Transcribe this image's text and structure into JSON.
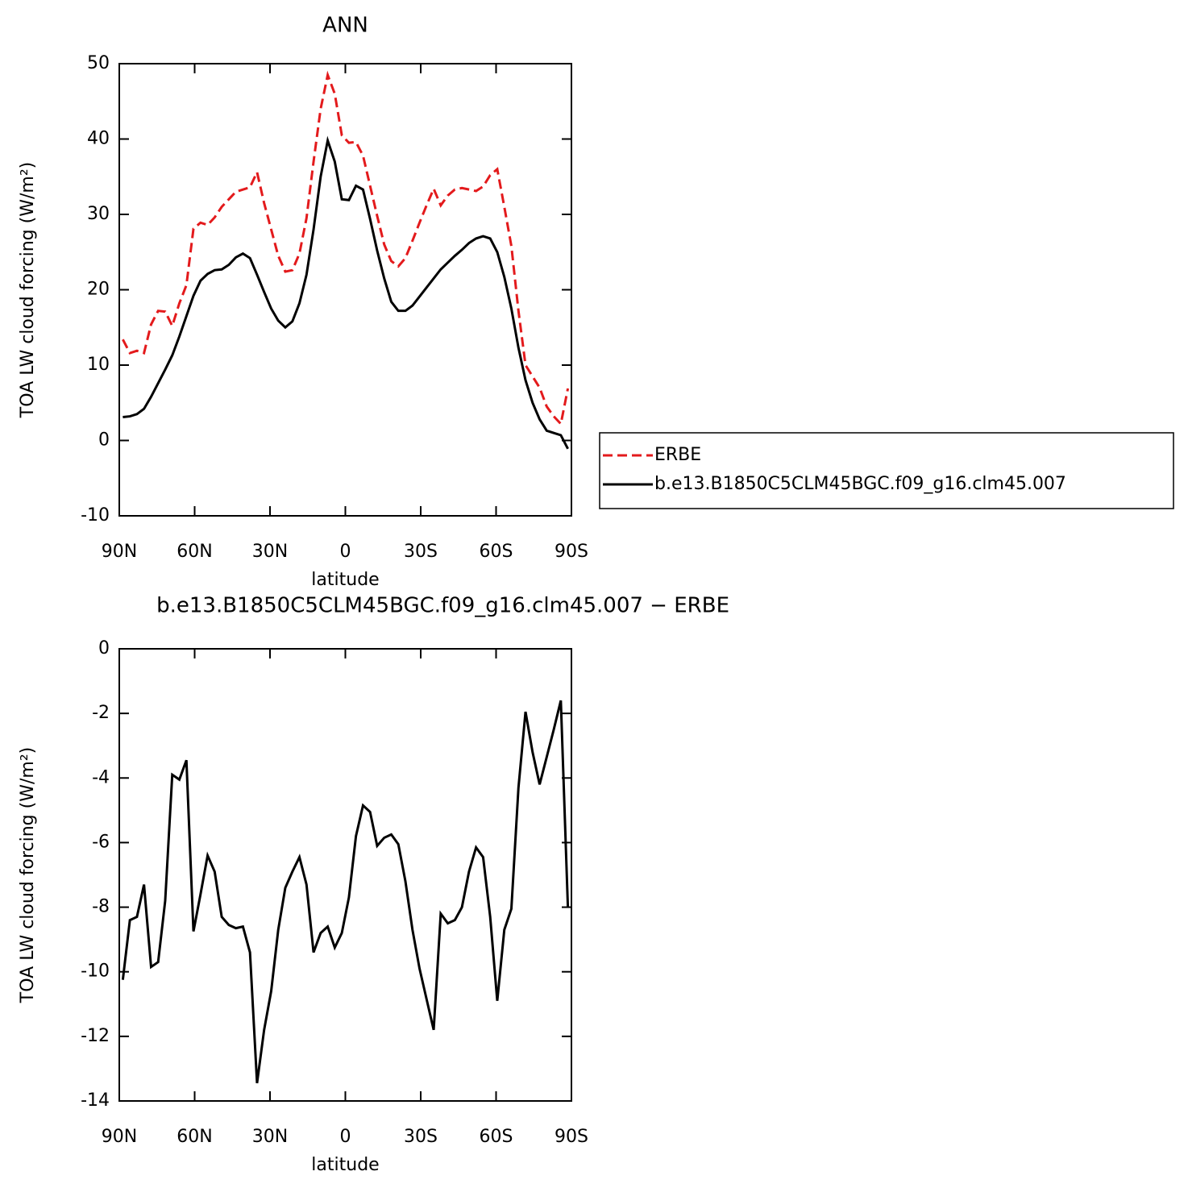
{
  "chart_data": [
    {
      "type": "line",
      "title": "ANN",
      "x_label": "latitude",
      "y_label": "TOA LW cloud forcing (W/m²)",
      "x": [
        88.59,
        85.78,
        82.97,
        80.16,
        77.34,
        74.53,
        71.72,
        68.91,
        66.09,
        63.28,
        60.47,
        57.66,
        54.84,
        52.03,
        49.22,
        46.41,
        43.59,
        40.78,
        37.97,
        35.16,
        32.34,
        29.53,
        26.72,
        23.91,
        21.09,
        18.28,
        15.47,
        12.66,
        9.84,
        7.03,
        4.22,
        1.41,
        -1.41,
        -4.22,
        -7.03,
        -9.84,
        -12.66,
        -15.47,
        -18.28,
        -21.09,
        -23.91,
        -26.72,
        -29.53,
        -32.34,
        -35.16,
        -37.97,
        -40.78,
        -43.59,
        -46.41,
        -49.22,
        -52.03,
        -54.84,
        -57.66,
        -60.47,
        -63.28,
        -66.09,
        -68.91,
        -71.72,
        -74.53,
        -77.34,
        -80.16,
        -82.97,
        -85.78,
        -88.59
      ],
      "xlim": [
        90,
        -90
      ],
      "xticks": [
        {
          "value": 90,
          "label": "90N"
        },
        {
          "value": 60,
          "label": "60N"
        },
        {
          "value": 30,
          "label": "30N"
        },
        0,
        {
          "value": -30,
          "label": "30S"
        },
        {
          "value": -60,
          "label": "60S"
        },
        {
          "value": -90,
          "label": "90S"
        }
      ],
      "ylim": [
        -10,
        50
      ],
      "yticks": [
        -10,
        0,
        10,
        20,
        30,
        40,
        50
      ],
      "legend": "right",
      "series": [
        {
          "name": "ERBE",
          "color": "#e31a1c",
          "dash": true,
          "values": [
            13.4,
            11.6,
            11.9,
            11.6,
            15.4,
            17.2,
            17.1,
            15.2,
            18.2,
            20.6,
            28.1,
            28.9,
            28.6,
            29.6,
            31.0,
            32.0,
            33.0,
            33.3,
            33.6,
            35.6,
            31.5,
            28.0,
            24.5,
            22.4,
            22.6,
            24.8,
            29.5,
            37.0,
            44.0,
            48.5,
            46.0,
            40.5,
            39.5,
            39.6,
            37.8,
            33.8,
            29.8,
            26.0,
            23.8,
            23.1,
            24.2,
            26.5,
            28.9,
            31.2,
            33.4,
            31.2,
            32.5,
            33.3,
            33.5,
            33.3,
            33.1,
            33.7,
            35.2,
            36.0,
            31.0,
            25.8,
            17.2,
            10.0,
            8.5,
            7.0,
            4.5,
            3.2,
            2.2,
            6.9
          ]
        },
        {
          "name": "b.e13.B1850C5CLM45BGC.f09_g16.clm45.007",
          "color": "#000000",
          "dash": false,
          "values": [
            3.1,
            3.2,
            3.5,
            4.2,
            5.8,
            7.6,
            9.4,
            11.3,
            13.8,
            16.5,
            19.2,
            21.2,
            22.1,
            22.6,
            22.7,
            23.3,
            24.3,
            24.8,
            24.2,
            22.0,
            19.7,
            17.5,
            15.9,
            15.0,
            15.8,
            18.2,
            22.0,
            28.0,
            35.0,
            39.8,
            37.0,
            32.0,
            31.9,
            33.8,
            33.3,
            29.4,
            25.2,
            21.5,
            18.4,
            17.2,
            17.2,
            17.9,
            19.1,
            20.3,
            21.5,
            22.7,
            23.6,
            24.5,
            25.3,
            26.2,
            26.8,
            27.1,
            26.8,
            25.0,
            21.7,
            17.5,
            12.3,
            8.0,
            5.0,
            2.8,
            1.3,
            1.0,
            0.7,
            -1.1
          ]
        }
      ]
    },
    {
      "type": "line",
      "title": "b.e13.B1850C5CLM45BGC.f09_g16.clm45.007 − ERBE",
      "x_label": "latitude",
      "y_label": "TOA LW cloud forcing (W/m²)",
      "x": [
        88.59,
        85.78,
        82.97,
        80.16,
        77.34,
        74.53,
        71.72,
        68.91,
        66.09,
        63.28,
        60.47,
        57.66,
        54.84,
        52.03,
        49.22,
        46.41,
        43.59,
        40.78,
        37.97,
        35.16,
        32.34,
        29.53,
        26.72,
        23.91,
        21.09,
        18.28,
        15.47,
        12.66,
        9.84,
        7.03,
        4.22,
        1.41,
        -1.41,
        -4.22,
        -7.03,
        -9.84,
        -12.66,
        -15.47,
        -18.28,
        -21.09,
        -23.91,
        -26.72,
        -29.53,
        -32.34,
        -35.16,
        -37.97,
        -40.78,
        -43.59,
        -46.41,
        -49.22,
        -52.03,
        -54.84,
        -57.66,
        -60.47,
        -63.28,
        -66.09,
        -68.91,
        -71.72,
        -74.53,
        -77.34,
        -80.16,
        -82.97,
        -85.78,
        -88.59
      ],
      "xlim": [
        90,
        -90
      ],
      "xticks": [
        {
          "value": 90,
          "label": "90N"
        },
        {
          "value": 60,
          "label": "60N"
        },
        {
          "value": 30,
          "label": "30N"
        },
        0,
        {
          "value": -30,
          "label": "30S"
        },
        {
          "value": -60,
          "label": "60S"
        },
        {
          "value": -90,
          "label": "90S"
        }
      ],
      "ylim": [
        -14,
        0
      ],
      "yticks": [
        -14,
        -12,
        -10,
        -8,
        -6,
        -4,
        -2,
        0
      ],
      "series": [
        {
          "color": "#000000",
          "dash": false,
          "values": [
            -10.25,
            -8.4,
            -8.3,
            -7.3,
            -9.85,
            -9.7,
            -7.8,
            -3.9,
            -4.05,
            -3.45,
            -8.75,
            -7.6,
            -6.4,
            -6.9,
            -8.3,
            -8.55,
            -8.65,
            -8.6,
            -9.4,
            -13.45,
            -11.8,
            -10.6,
            -8.7,
            -7.4,
            -6.9,
            -6.45,
            -7.3,
            -9.4,
            -8.8,
            -8.6,
            -9.25,
            -8.8,
            -7.7,
            -5.8,
            -4.85,
            -5.05,
            -6.1,
            -5.85,
            -5.75,
            -6.05,
            -7.2,
            -8.7,
            -9.9,
            -10.85,
            -11.8,
            -8.2,
            -8.5,
            -8.4,
            -8.0,
            -6.9,
            -6.15,
            -6.45,
            -8.3,
            -10.9,
            -8.7,
            -8.05,
            -4.3,
            -1.95,
            -3.2,
            -4.2,
            -3.35,
            -2.5,
            -1.6,
            -8.0
          ]
        }
      ]
    }
  ]
}
